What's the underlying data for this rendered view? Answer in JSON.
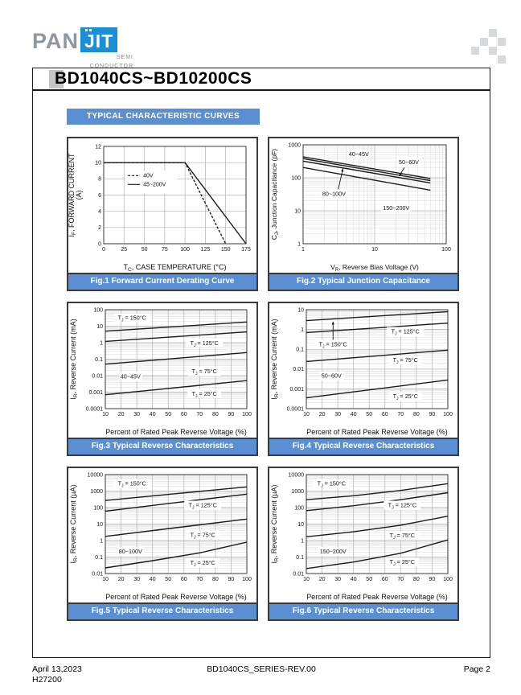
{
  "page": {
    "header": {
      "logo_pan": "PAN",
      "logo_jit": "JIT",
      "logo_sub1": "SEMI",
      "logo_sub2": "CONDUCTOR",
      "part_title": "BD1040CS~BD10200CS"
    },
    "banner_title": "TYPICAL CHARACTERISTIC CURVES",
    "footer": {
      "date": "April 13,2023",
      "doc_code": "H27200",
      "doc_id": "BD1040CS_SERIES-REV.00",
      "page_label": "Page 2"
    }
  },
  "colors": {
    "accent_blue": "#5b8fd4",
    "logo_blue": "#1b8ed8",
    "logo_gray": "#8e979e",
    "title_marker_gray": "#c6c6c6",
    "pixel_gray": "#d7dadd"
  },
  "chart_data": [
    {
      "id": "fig1",
      "caption": "Fig.1 Forward Current Derating Curve",
      "type": "line",
      "margins": {
        "l": 44,
        "r": 13,
        "t": 10,
        "b": 36
      },
      "axisFs": 9,
      "x": {
        "scale": "linear",
        "min": 0,
        "max": 175,
        "ticks": [
          0,
          25,
          50,
          75,
          100,
          125,
          150,
          175
        ],
        "label": "T_{C}, CASE TEMPERATURE (°C)"
      },
      "y": {
        "scale": "linear",
        "min": 0,
        "max": 12,
        "ticks": [
          0,
          2,
          4,
          6,
          8,
          10,
          12
        ],
        "label": "I_{F}, FORWARD CURRENT",
        "label2": "(A)"
      },
      "legend": {
        "fx": 0.17,
        "fy": 0.3
      },
      "series": [
        {
          "name": "40V",
          "dash": "3,2",
          "points": [
            [
              0,
              10
            ],
            [
              100,
              10
            ],
            [
              150,
              0
            ]
          ]
        },
        {
          "name": "45~200V",
          "points": [
            [
              0,
              10
            ],
            [
              100,
              10
            ],
            [
              175,
              0
            ]
          ]
        }
      ],
      "annotations": []
    },
    {
      "id": "fig2",
      "caption": "Fig.2 Typical Junction Capacitance",
      "type": "line",
      "margins": {
        "l": 42,
        "r": 14,
        "t": 8,
        "b": 36
      },
      "axisFs": 8.5,
      "x": {
        "scale": "log",
        "min": 1,
        "max": 100,
        "ticks": [
          1,
          10,
          100
        ],
        "label": "V_{R}, Reverse Bias Voltage (V)"
      },
      "y": {
        "scale": "log",
        "min": 1,
        "max": 1000,
        "ticks": [
          1,
          10,
          100,
          1000
        ],
        "label": "C_{J}, Junction Capacitance (pF)"
      },
      "series": [
        {
          "name": "40~45V",
          "points": [
            [
              1,
              430
            ],
            [
              60,
              95
            ]
          ]
        },
        {
          "name": "50~60V",
          "points": [
            [
              1,
              380
            ],
            [
              60,
              82
            ]
          ]
        },
        {
          "name": "80~100V",
          "points": [
            [
              1,
              320
            ],
            [
              60,
              70
            ]
          ]
        },
        {
          "name": "150~200V",
          "points": [
            [
              1,
              205
            ],
            [
              60,
              42
            ]
          ]
        }
      ],
      "annotations": [
        {
          "text": "40~45V",
          "x": 6,
          "y": 520
        },
        {
          "text": "50~60V",
          "x": 30,
          "y": 300,
          "arrow": [
            26,
            205,
            22,
            112
          ]
        },
        {
          "text": "80~100V",
          "x": 2.7,
          "y": 32,
          "arrow": [
            3.1,
            45,
            3.6,
            190
          ]
        },
        {
          "text": "150~200V",
          "x": 20,
          "y": 12
        }
      ]
    },
    {
      "id": "fig3",
      "caption": "Fig.3 Typical Reverse Characteristics",
      "type": "line",
      "margins": {
        "l": 46,
        "r": 12,
        "t": 8,
        "b": 36
      },
      "axisFs": 9,
      "x": {
        "scale": "linear",
        "min": 10,
        "max": 100,
        "ticks": [
          10,
          20,
          30,
          40,
          50,
          60,
          70,
          80,
          90,
          100
        ],
        "label": "Percent of Rated Peak Reverse Voltage (%)"
      },
      "y": {
        "scale": "log",
        "min": 0.0001,
        "max": 100,
        "ticks": [
          0.0001,
          0.001,
          0.01,
          0.1,
          1,
          10,
          100
        ],
        "label": "I_{R}, Reverse Current (mA)"
      },
      "series": [
        {
          "name": "TJ = 150°C",
          "points": [
            [
              10,
              5
            ],
            [
              100,
              18
            ]
          ]
        },
        {
          "name": "TJ = 125°C",
          "points": [
            [
              10,
              1.2
            ],
            [
              100,
              4.5
            ]
          ]
        },
        {
          "name": "TJ = 75°C",
          "points": [
            [
              10,
              0.05
            ],
            [
              100,
              0.25
            ]
          ]
        },
        {
          "name": "TJ = 25°C",
          "points": [
            [
              10,
              0.0007
            ],
            [
              100,
              0.005
            ]
          ]
        }
      ],
      "annotations": [
        {
          "text": "T_{J} = 150°C",
          "x": 27,
          "y": 32
        },
        {
          "text": "T_{J} = 125°C",
          "x": 73,
          "y": 0.95
        },
        {
          "text": "T_{J} = 75°C",
          "x": 73,
          "y": 0.018
        },
        {
          "text": "T_{J} = 25°C",
          "x": 73,
          "y": 0.0008
        },
        {
          "text": "40~45V",
          "x": 26,
          "y": 0.009
        }
      ]
    },
    {
      "id": "fig4",
      "caption": "Fig.4 Typical Reverse Characteristics",
      "type": "line",
      "margins": {
        "l": 46,
        "r": 12,
        "t": 8,
        "b": 36
      },
      "axisFs": 9,
      "x": {
        "scale": "linear",
        "min": 10,
        "max": 100,
        "ticks": [
          10,
          20,
          30,
          40,
          50,
          60,
          70,
          80,
          90,
          100
        ],
        "label": "Percent of Rated Peak Reverse Voltage (%)"
      },
      "y": {
        "scale": "log",
        "min": 0.0001,
        "max": 10,
        "ticks": [
          0.0001,
          0.001,
          0.01,
          0.1,
          1,
          10
        ],
        "label": "I_{R}, Reverse Current (mA)"
      },
      "series": [
        {
          "name": "TJ = 150°C",
          "points": [
            [
              10,
              2.8
            ],
            [
              100,
              8
            ]
          ]
        },
        {
          "name": "TJ = 125°C",
          "points": [
            [
              10,
              0.7
            ],
            [
              100,
              2.1
            ]
          ]
        },
        {
          "name": "TJ = 75°C",
          "points": [
            [
              10,
              0.024
            ],
            [
              100,
              0.09
            ]
          ]
        },
        {
          "name": "TJ = 25°C",
          "points": [
            [
              10,
              0.00035
            ],
            [
              100,
              0.0028
            ]
          ]
        }
      ],
      "annotations": [
        {
          "text": "T_{J} = 150°C",
          "x": 27,
          "y": 0.18,
          "arrow": [
            27,
            0.3,
            27,
            2.5
          ]
        },
        {
          "text": "T_{J} = 125°C",
          "x": 73,
          "y": 0.8
        },
        {
          "text": "T_{J} = 75°C",
          "x": 73,
          "y": 0.028
        },
        {
          "text": "T_{J} = 25°C",
          "x": 73,
          "y": 0.00042
        },
        {
          "text": "50~60V",
          "x": 26,
          "y": 0.0045
        }
      ]
    },
    {
      "id": "fig5",
      "caption": "Fig.5 Typical Reverse Characteristics",
      "type": "line",
      "margins": {
        "l": 46,
        "r": 12,
        "t": 8,
        "b": 36
      },
      "axisFs": 9,
      "x": {
        "scale": "linear",
        "min": 10,
        "max": 100,
        "ticks": [
          10,
          20,
          30,
          40,
          50,
          60,
          70,
          80,
          90,
          100
        ],
        "label": "Percent of Rated Peak Reverse Voltage (%)"
      },
      "y": {
        "scale": "log",
        "min": 0.01,
        "max": 10000,
        "ticks": [
          0.01,
          0.1,
          1,
          10,
          100,
          1000,
          10000
        ],
        "label": "I_{R}, Reverse Current (µA)"
      },
      "series": [
        {
          "name": "TJ = 150°C",
          "points": [
            [
              10,
              270
            ],
            [
              55,
              700
            ],
            [
              100,
              1800
            ]
          ]
        },
        {
          "name": "TJ = 125°C",
          "points": [
            [
              10,
              60
            ],
            [
              55,
              200
            ],
            [
              100,
              650
            ]
          ]
        },
        {
          "name": "TJ = 75°C",
          "points": [
            [
              10,
              1.8
            ],
            [
              55,
              6
            ],
            [
              100,
              20
            ]
          ]
        },
        {
          "name": "TJ = 25°C",
          "points": [
            [
              10,
              0.022
            ],
            [
              40,
              0.06
            ],
            [
              70,
              0.18
            ],
            [
              100,
              0.8
            ]
          ]
        }
      ],
      "annotations": [
        {
          "text": "T_{J} = 150°C",
          "x": 27,
          "y": 2800
        },
        {
          "text": "T_{J} = 125°C",
          "x": 72,
          "y": 140
        },
        {
          "text": "T_{J} = 75°C",
          "x": 72,
          "y": 2.2
        },
        {
          "text": "T_{J} = 25°C",
          "x": 72,
          "y": 0.045
        },
        {
          "text": "80~100V",
          "x": 26,
          "y": 0.22
        }
      ]
    },
    {
      "id": "fig6",
      "caption": "Fig.6 Typical Reverse Characteristics",
      "type": "line",
      "margins": {
        "l": 46,
        "r": 12,
        "t": 8,
        "b": 36
      },
      "axisFs": 9,
      "x": {
        "scale": "linear",
        "min": 10,
        "max": 100,
        "ticks": [
          10,
          20,
          30,
          40,
          50,
          60,
          70,
          80,
          90,
          100
        ],
        "label": "Percent of Rated Peak Reverse Voltage (%)"
      },
      "y": {
        "scale": "log",
        "min": 0.01,
        "max": 10000,
        "ticks": [
          0.01,
          0.1,
          1,
          10,
          100,
          1000,
          10000
        ],
        "label": "I_{R}, Reverse Current (µA)"
      },
      "series": [
        {
          "name": "TJ = 150°C",
          "points": [
            [
              10,
              300
            ],
            [
              40,
              520
            ],
            [
              70,
              1100
            ],
            [
              100,
              2800
            ]
          ]
        },
        {
          "name": "TJ = 125°C",
          "points": [
            [
              10,
              65
            ],
            [
              40,
              130
            ],
            [
              70,
              300
            ],
            [
              100,
              800
            ]
          ]
        },
        {
          "name": "TJ = 75°C",
          "points": [
            [
              10,
              1.7
            ],
            [
              40,
              3.4
            ],
            [
              70,
              8.5
            ],
            [
              100,
              30
            ]
          ]
        },
        {
          "name": "TJ = 25°C",
          "points": [
            [
              10,
              0.02
            ],
            [
              40,
              0.05
            ],
            [
              70,
              0.17
            ],
            [
              100,
              1.1
            ]
          ]
        }
      ],
      "annotations": [
        {
          "text": "T_{J} = 150°C",
          "x": 26,
          "y": 2800
        },
        {
          "text": "T_{J} = 125°C",
          "x": 71,
          "y": 140
        },
        {
          "text": "T_{J} = 75°C",
          "x": 71,
          "y": 2
        },
        {
          "text": "T_{J} = 25°C",
          "x": 71,
          "y": 0.05
        },
        {
          "text": "150~200V",
          "x": 27,
          "y": 0.22
        }
      ]
    }
  ]
}
